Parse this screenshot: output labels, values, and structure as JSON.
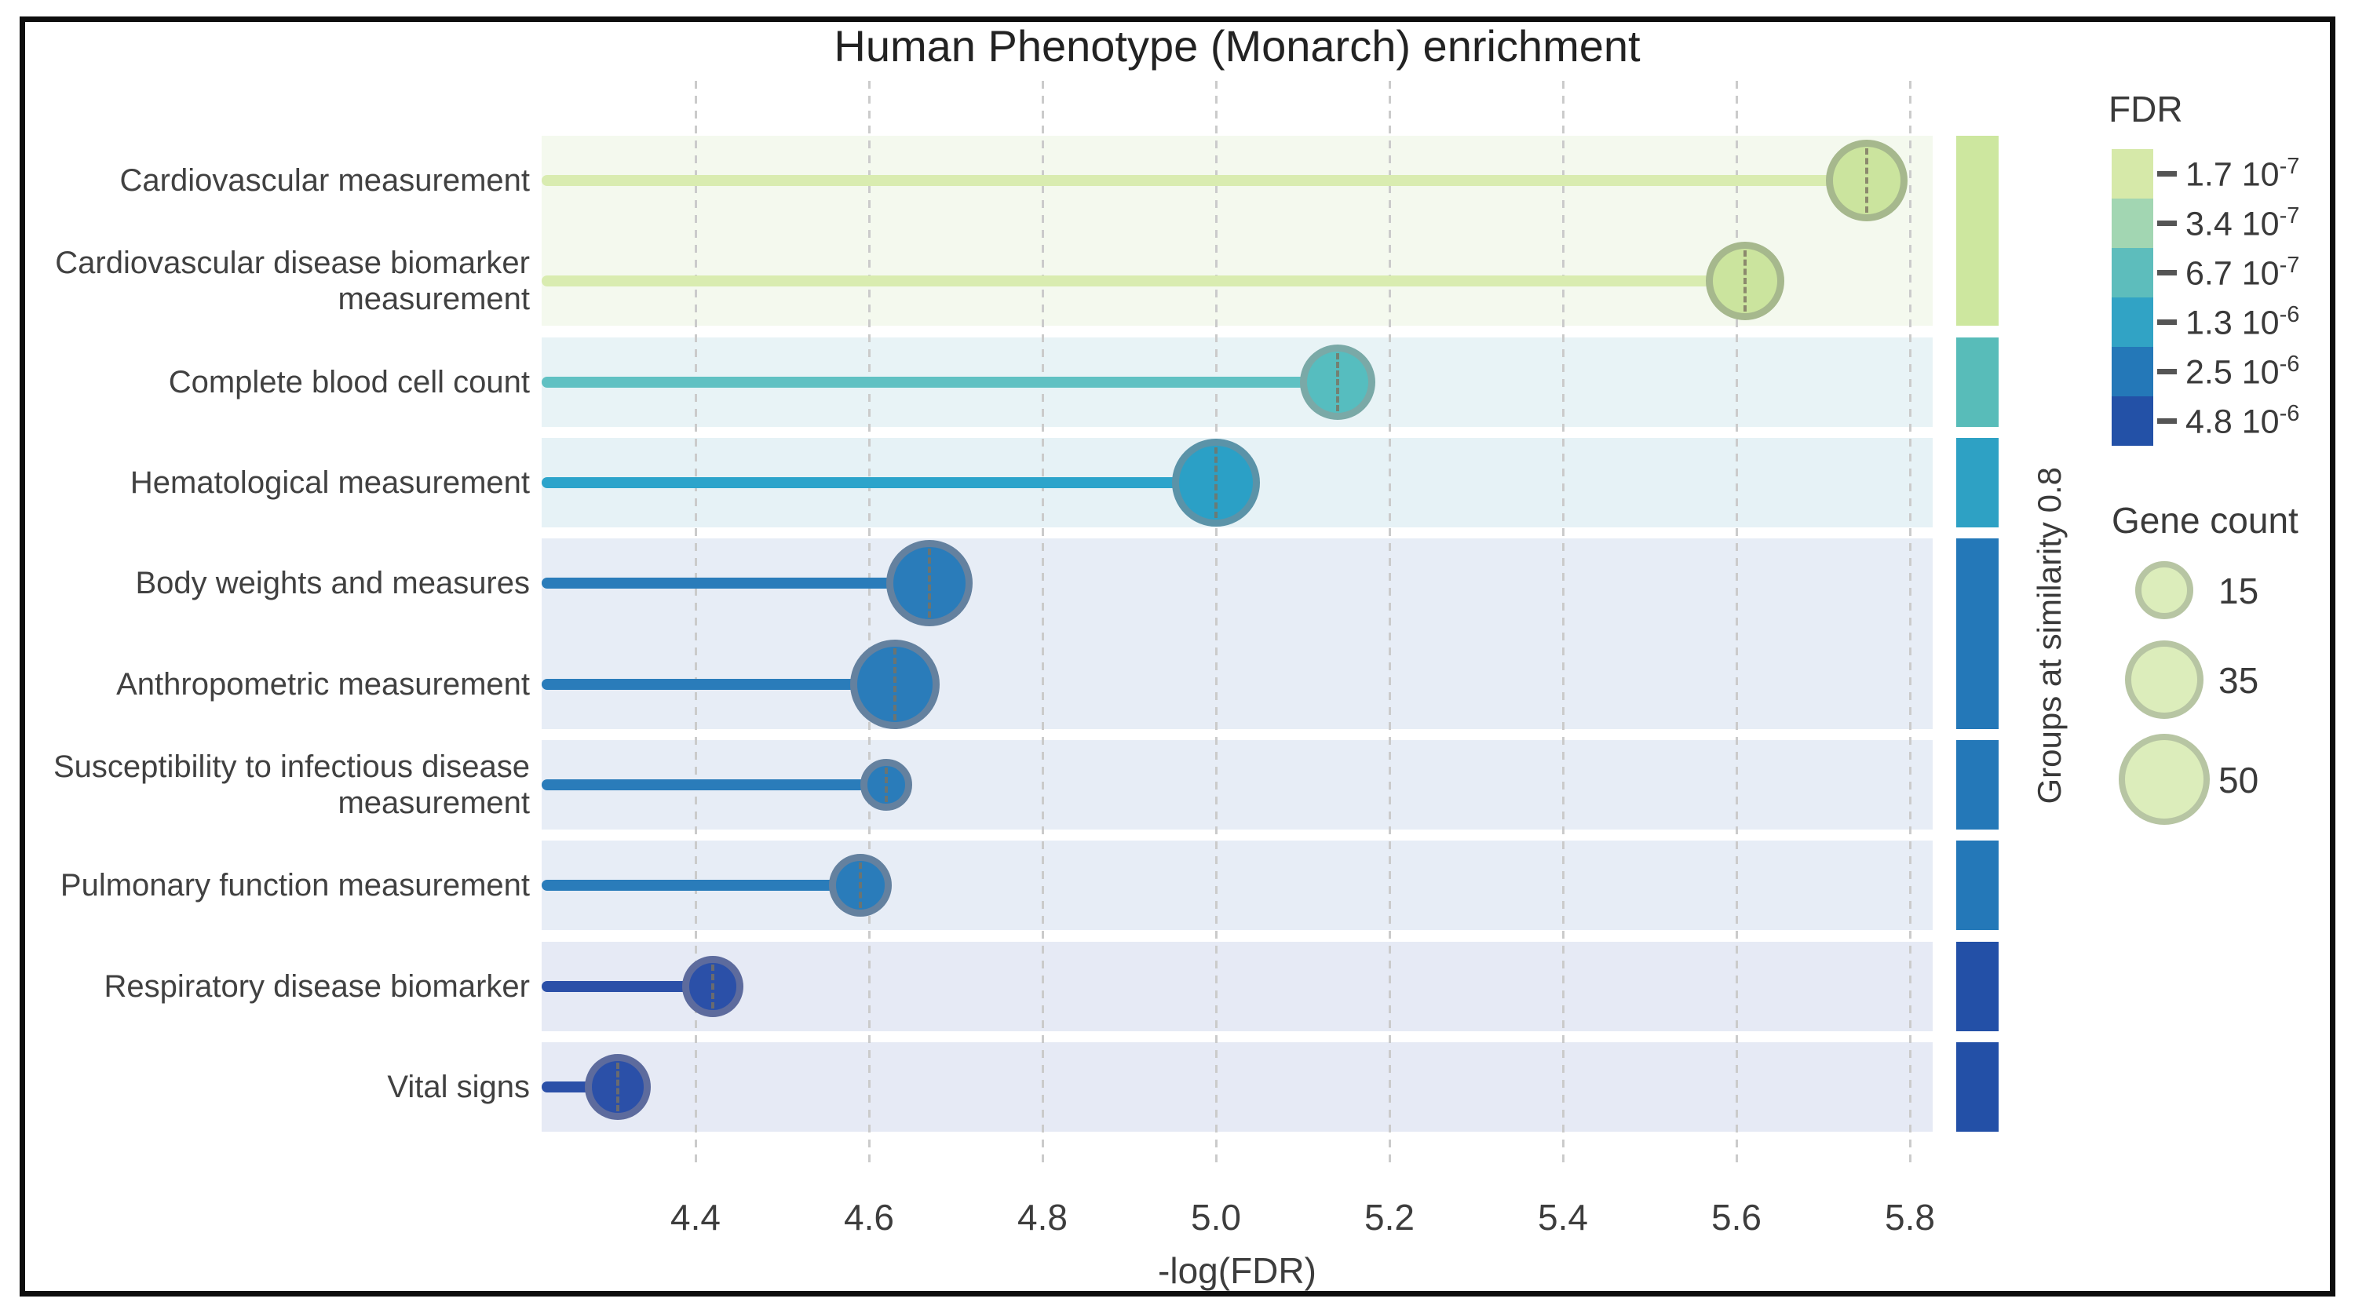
{
  "chart_data": {
    "type": "scatter",
    "variant": "lollipop",
    "title": "Human Phenotype (Monarch) enrichment",
    "xlabel": "-log(FDR)",
    "x_ticks": [
      "4.4",
      "4.6",
      "4.8",
      "5.0",
      "5.2",
      "5.4",
      "5.6",
      "5.8"
    ],
    "xlim": [
      4.22,
      5.83
    ],
    "grid": true,
    "right_axis_label": "Groups at similarity 0.8",
    "points": [
      {
        "label": "Cardiovascular measurement",
        "lines": [
          "Cardiovascular measurement"
        ],
        "x": 5.75,
        "gene_count_approx": 39,
        "r": 52,
        "group": 0
      },
      {
        "label": "Cardiovascular disease biomarker measurement",
        "lines": [
          "Cardiovascular disease biomarker",
          "measurement"
        ],
        "x": 5.61,
        "gene_count_approx": 35,
        "r": 50,
        "group": 0
      },
      {
        "label": "Complete blood cell count",
        "lines": [
          "Complete blood cell count"
        ],
        "x": 5.14,
        "gene_count_approx": 31,
        "r": 48,
        "group": 1
      },
      {
        "label": "Hematological measurement",
        "lines": [
          "Hematological measurement"
        ],
        "x": 5.0,
        "gene_count_approx": 47,
        "r": 56,
        "group": 2
      },
      {
        "label": "Body weights and measures",
        "lines": [
          "Body weights and measures"
        ],
        "x": 4.67,
        "gene_count_approx": 45,
        "r": 55,
        "group": 3
      },
      {
        "label": "Anthropometric measurement",
        "lines": [
          "Anthropometric measurement"
        ],
        "x": 4.63,
        "gene_count_approx": 49,
        "r": 57,
        "group": 3
      },
      {
        "label": "Susceptibility to infectious disease measurement",
        "lines": [
          "Susceptibility to infectious disease",
          "measurement"
        ],
        "x": 4.62,
        "gene_count_approx": 11,
        "r": 33,
        "group": 4
      },
      {
        "label": "Pulmonary function measurement",
        "lines": [
          "Pulmonary function measurement"
        ],
        "x": 4.59,
        "gene_count_approx": 19,
        "r": 40,
        "group": 5
      },
      {
        "label": "Respiratory disease biomarker",
        "lines": [
          "Respiratory disease biomarker"
        ],
        "x": 4.42,
        "gene_count_approx": 18,
        "r": 39,
        "group": 6
      },
      {
        "label": "Vital signs",
        "lines": [
          "Vital signs"
        ],
        "x": 4.31,
        "gene_count_approx": 22,
        "r": 42,
        "group": 7
      }
    ],
    "groups": [
      {
        "rows": [
          0,
          1
        ],
        "dot": "#cbe49e",
        "stroke": "#a6b88d",
        "stem": "#d9ecb0",
        "band": "#f4f9ee",
        "tile": "#cde79f"
      },
      {
        "rows": [
          2
        ],
        "dot": "#56bdbf",
        "stroke": "#7aa9a7",
        "stem": "#60c1c3",
        "band": "#e8f3f6",
        "tile": "#58bcb9"
      },
      {
        "rows": [
          3
        ],
        "dot": "#2ba0c6",
        "stroke": "#5b93a8",
        "stem": "#2ca4cb",
        "band": "#e6f2f6",
        "tile": "#2ea1c4"
      },
      {
        "rows": [
          4,
          5
        ],
        "dot": "#2a7cba",
        "stroke": "#64819f",
        "stem": "#2a7cba",
        "band": "#e7edf6",
        "tile": "#2478b8"
      },
      {
        "rows": [
          6
        ],
        "dot": "#2a7cba",
        "stroke": "#64819f",
        "stem": "#2a7cba",
        "band": "#e7edf6",
        "tile": "#2478b8"
      },
      {
        "rows": [
          7
        ],
        "dot": "#2a7cba",
        "stroke": "#64819f",
        "stem": "#2a7cba",
        "band": "#e7edf6",
        "tile": "#2478b8"
      },
      {
        "rows": [
          8
        ],
        "dot": "#2b50a8",
        "stroke": "#5d6b9d",
        "stem": "#2b50a8",
        "band": "#e6eaf5",
        "tile": "#2350a7"
      },
      {
        "rows": [
          9
        ],
        "dot": "#2b50a8",
        "stroke": "#5d6b9d",
        "stem": "#2b50a8",
        "band": "#e6eaf5",
        "tile": "#2350a7"
      }
    ],
    "fdr_legend": {
      "title": "FDR",
      "entries": [
        {
          "color": "#d6e9a9",
          "base": "1.7 10",
          "exp": "-7"
        },
        {
          "color": "#a2d6b2",
          "base": "3.4 10",
          "exp": "-7"
        },
        {
          "color": "#5dbdbc",
          "base": "6.7 10",
          "exp": "-7"
        },
        {
          "color": "#31a3c5",
          "base": "1.3 10",
          "exp": "-6"
        },
        {
          "color": "#2478b8",
          "base": "2.5 10",
          "exp": "-6"
        },
        {
          "color": "#2351a7",
          "base": "4.8 10",
          "exp": "-6"
        }
      ]
    },
    "size_legend": {
      "title": "Gene count",
      "fill": "#dcedbb",
      "stroke": "#b7c5a3",
      "entries": [
        {
          "value": "15",
          "r": 37
        },
        {
          "value": "35",
          "r": 50
        },
        {
          "value": "50",
          "r": 58
        }
      ]
    },
    "grid_color": "#cbcbcb"
  }
}
